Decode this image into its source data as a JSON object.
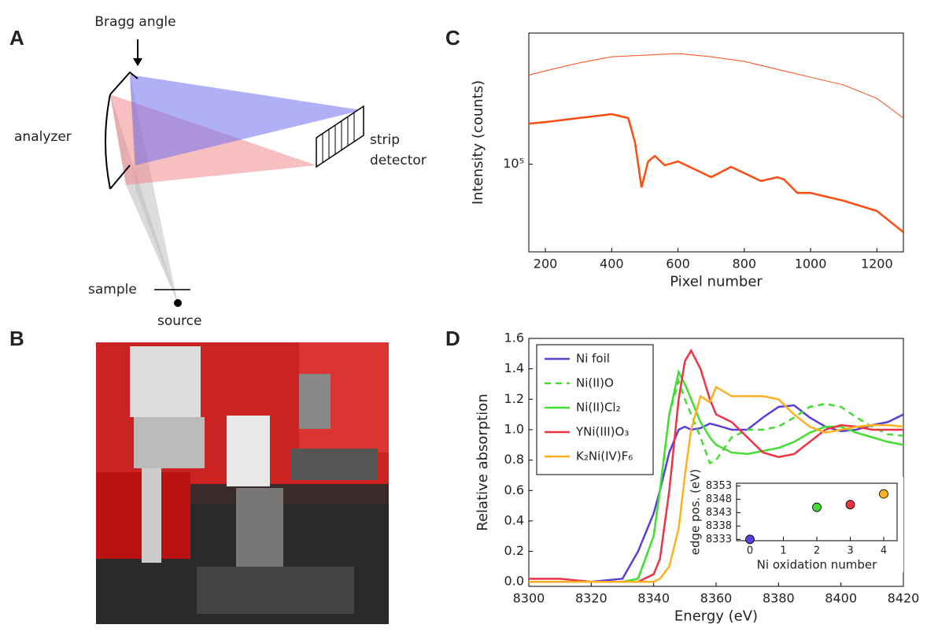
{
  "panel_labels": [
    "A",
    "B",
    "C",
    "D"
  ],
  "diagram": {
    "bragg_angle": "Bragg angle",
    "analyzer": "analyzer",
    "strip": "strip",
    "detector": "detector",
    "sample": "sample",
    "source": "source"
  },
  "chart_data": [
    {
      "type": "line",
      "xlabel": "Pixel number",
      "ylabel": "Intensity (counts)",
      "log_y": true,
      "xlim": [
        150,
        1280
      ],
      "xticks": [
        200,
        400,
        600,
        800,
        1000,
        1200
      ],
      "ylim": [
        48000,
        300000
      ],
      "yticks": [
        {
          "value": 100000,
          "label": "10⁵"
        }
      ],
      "series": [
        {
          "color": "#ff4a10",
          "width": 1,
          "x": [
            150,
            200,
            300,
            400,
            500,
            600,
            700,
            800,
            900,
            1000,
            1100,
            1200,
            1280
          ],
          "values": [
            211000,
            218600,
            233400,
            246000,
            249300,
            252700,
            246000,
            236600,
            221400,
            207300,
            194100,
            173500,
            147200
          ]
        },
        {
          "color": "#ff4a10",
          "width": 2.5,
          "x": [
            150,
            200,
            300,
            400,
            450,
            470,
            490,
            510,
            530,
            560,
            600,
            650,
            700,
            760,
            800,
            850,
            900,
            920,
            960,
            1000,
            1100,
            1200,
            1280
          ],
          "values": [
            140500,
            142300,
            147200,
            152100,
            147200,
            120700,
            82400,
            102400,
            107200,
            99100,
            102400,
            95900,
            89700,
            97800,
            92800,
            86900,
            89700,
            88000,
            78600,
            78600,
            73600,
            67600,
            56600
          ]
        }
      ]
    },
    {
      "type": "line",
      "xlabel": "Energy (eV)",
      "ylabel": "Relative absorption",
      "legend": "upper left",
      "xlim": [
        8300,
        8420
      ],
      "xticks": [
        8300,
        8320,
        8340,
        8360,
        8380,
        8400,
        8420
      ],
      "ylim": [
        -0.03,
        1.6
      ],
      "yticks": [
        {
          "value": 0,
          "label": "0.0"
        },
        0.2,
        0.4,
        0.6,
        0.8,
        {
          "value": 1,
          "label": "1.0"
        },
        1.2,
        1.4,
        1.6
      ],
      "x": [
        8300,
        8310,
        8320,
        8330,
        8335,
        8340,
        8342,
        8345,
        8348,
        8350,
        8352,
        8355,
        8358,
        8360,
        8365,
        8370,
        8375,
        8380,
        8385,
        8390,
        8395,
        8400,
        8405,
        8410,
        8415,
        8420
      ],
      "series": [
        {
          "name": "Ni foil",
          "color": "#5b3fd8",
          "dashed": false,
          "values": [
            0,
            0,
            0,
            0.02,
            0.2,
            0.45,
            0.6,
            0.85,
            1.0,
            1.02,
            1.0,
            1.01,
            1.04,
            1.03,
            1.0,
            1.0,
            1.08,
            1.15,
            1.16,
            1.08,
            1.02,
            0.99,
            1.0,
            1.03,
            1.05,
            1.1
          ]
        },
        {
          "name": "Ni(II)O",
          "color": "#44dd33",
          "dashed": true,
          "values": [
            0,
            0,
            0,
            0,
            0.02,
            0.3,
            0.6,
            1.1,
            1.32,
            1.2,
            1.1,
            0.95,
            0.78,
            0.8,
            0.95,
            1.0,
            1.0,
            1.02,
            1.08,
            1.15,
            1.17,
            1.15,
            1.08,
            1.02,
            0.97,
            0.96
          ]
        },
        {
          "name": "Ni(II)Cl₂",
          "color": "#44dd33",
          "dashed": false,
          "values": [
            0,
            0,
            0,
            0,
            0.02,
            0.3,
            0.6,
            1.1,
            1.38,
            1.3,
            1.2,
            1.05,
            0.95,
            0.9,
            0.85,
            0.84,
            0.86,
            0.88,
            0.92,
            0.98,
            1.02,
            1.02,
            0.98,
            0.95,
            0.92,
            0.9
          ]
        },
        {
          "name": "YNi(III)O₃",
          "color": "#ee3344",
          "dashed": false,
          "values": [
            0.02,
            0.02,
            0,
            0,
            0,
            0.05,
            0.15,
            0.6,
            1.2,
            1.45,
            1.52,
            1.4,
            1.2,
            1.1,
            1.05,
            0.95,
            0.85,
            0.82,
            0.84,
            0.92,
            1.0,
            1.03,
            1.02,
            1.0,
            1.0,
            1.0
          ]
        },
        {
          "name": "K₂Ni(IV)F₆",
          "color": "#ffb020",
          "dashed": false,
          "values": [
            0,
            0,
            0,
            0,
            0,
            0,
            0.02,
            0.1,
            0.35,
            0.7,
            1.0,
            1.22,
            1.18,
            1.28,
            1.22,
            1.22,
            1.22,
            1.2,
            1.1,
            1.02,
            0.98,
            1.0,
            1.02,
            1.03,
            1.03,
            1.02
          ]
        }
      ]
    },
    {
      "type": "scatter",
      "xlabel": "Ni oxidation number",
      "ylabel": "edge pos. (eV)",
      "xlim": [
        -0.4,
        4.4
      ],
      "xticks": [
        0,
        1,
        2,
        3,
        4
      ],
      "ylim": [
        8332.5,
        8354
      ],
      "yticks": [
        8333,
        8338,
        8343,
        8348,
        8353
      ],
      "x": [
        0,
        2,
        3,
        4
      ],
      "values": [
        8333,
        8345,
        8346,
        8350
      ],
      "colors": [
        "#5b3fd8",
        "#44dd33",
        "#ee3344",
        "#ffb020"
      ]
    }
  ]
}
